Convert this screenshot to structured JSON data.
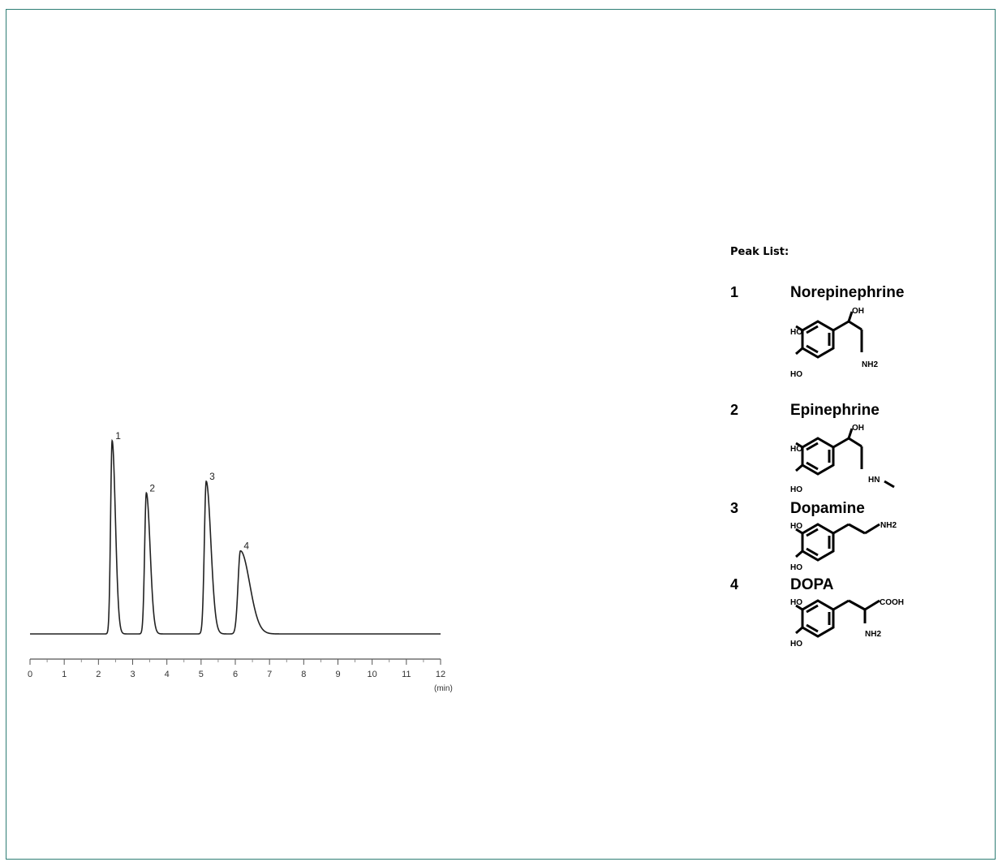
{
  "chart_data": {
    "type": "line",
    "title": "",
    "xlabel": "",
    "ylabel": "",
    "x_unit_label": "(min)",
    "xlim": [
      0,
      12
    ],
    "x_ticks": [
      0,
      1,
      2,
      3,
      4,
      5,
      6,
      7,
      8,
      9,
      10,
      11,
      12
    ],
    "grid": false,
    "series": [
      {
        "peaks": [
          {
            "label": "1",
            "retention_time": 2.4,
            "relative_height": 1.0,
            "width": 0.045,
            "tail": 0.05
          },
          {
            "label": "2",
            "retention_time": 3.4,
            "relative_height": 0.73,
            "width": 0.05,
            "tail": 0.06
          },
          {
            "label": "3",
            "retention_time": 5.15,
            "relative_height": 0.79,
            "width": 0.055,
            "tail": 0.08
          },
          {
            "label": "4",
            "retention_time": 6.15,
            "relative_height": 0.43,
            "width": 0.07,
            "tail": 0.2
          }
        ]
      }
    ]
  },
  "peak_list": {
    "title": "Peak List:",
    "items": [
      {
        "number": "1",
        "name": "Norepinephrine",
        "labels": [
          "OH",
          "HO",
          "HO",
          "NH2"
        ]
      },
      {
        "number": "2",
        "name": "Epinephrine",
        "labels": [
          "OH",
          "HO",
          "HO",
          "HN"
        ]
      },
      {
        "number": "3",
        "name": "Dopamine",
        "labels": [
          "HO",
          "HO",
          "NH2"
        ]
      },
      {
        "number": "4",
        "name": "DOPA",
        "labels": [
          "HO",
          "HO",
          "COOH",
          "NH2"
        ]
      }
    ]
  }
}
